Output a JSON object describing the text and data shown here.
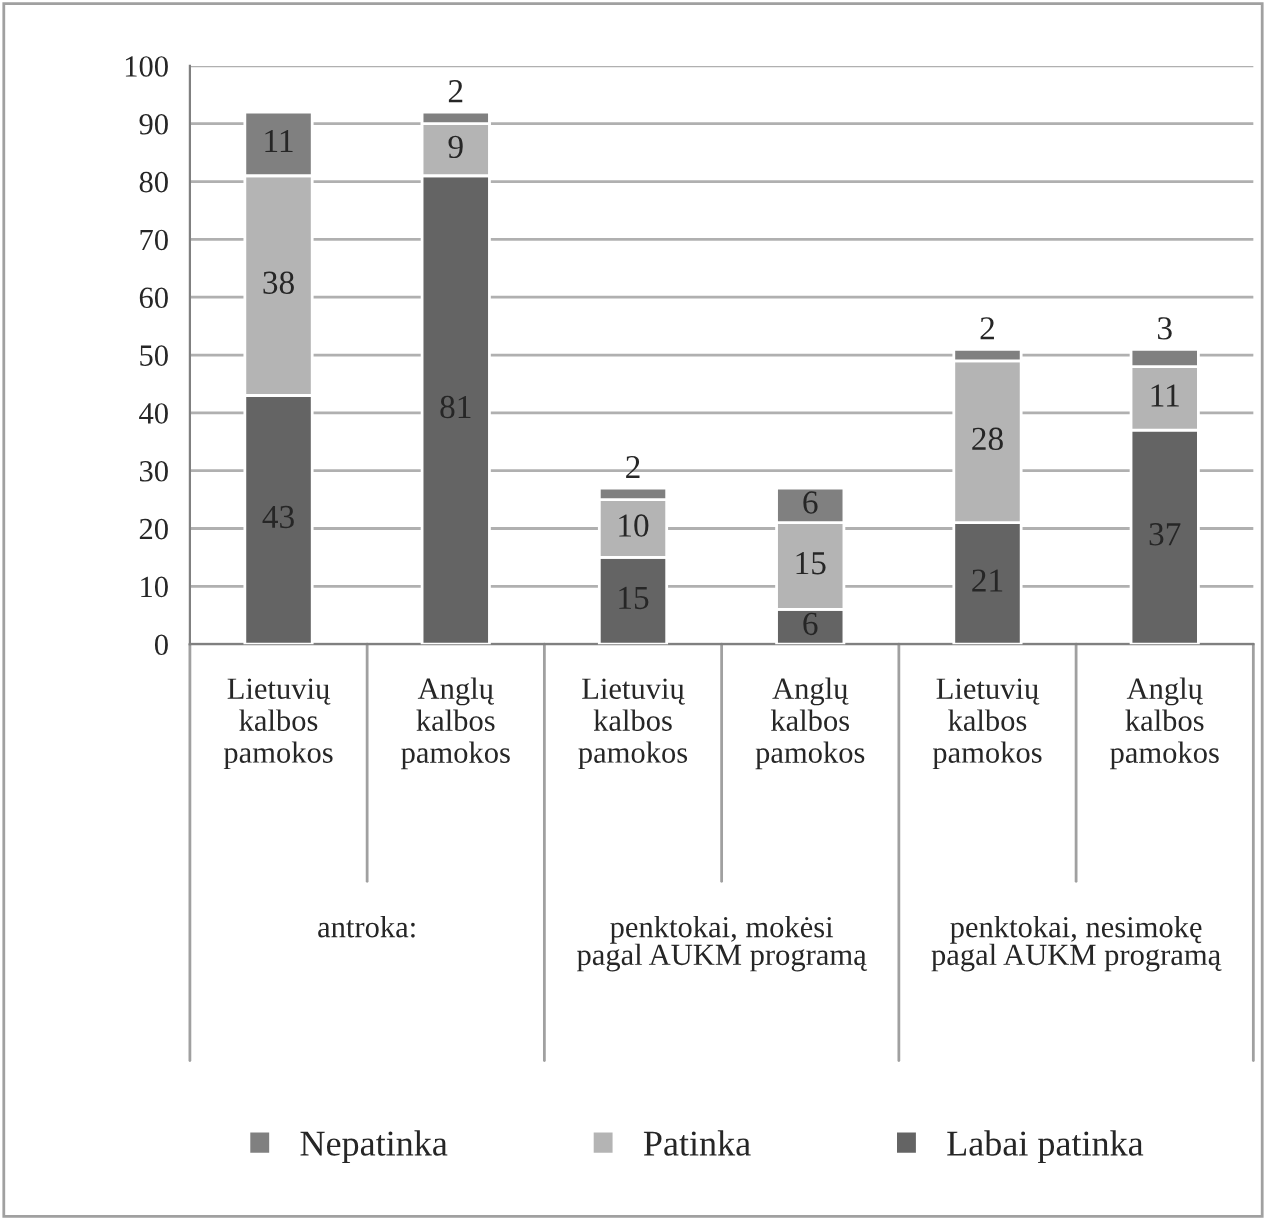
{
  "chart_data": {
    "type": "bar",
    "stacked": true,
    "categories": [
      "Lietuvių kalbos pamokos",
      "Anglų kalbos pamokos",
      "Lietuvių kalbos pamokos",
      "Anglų kalbos pamokos",
      "Lietuvių kalbos pamokos",
      "Anglų kalbos pamokos"
    ],
    "series": [
      {
        "name": "Labai patinka",
        "color": "#646464",
        "values": [
          43,
          81,
          15,
          6,
          21,
          37
        ]
      },
      {
        "name": "Patinka",
        "color": "#b4b4b4",
        "values": [
          38,
          9,
          10,
          15,
          28,
          11
        ]
      },
      {
        "name": "Nepatinka",
        "color": "#808080",
        "values": [
          11,
          2,
          2,
          6,
          2,
          3
        ]
      }
    ],
    "annotations": [
      "antroka:",
      "penktokai, mokėsi pagal AUKM programą",
      "penktokai, nesimokę pagal AUKM programą"
    ],
    "ylim": [
      0,
      100
    ],
    "yticks": [
      0,
      10,
      20,
      30,
      40,
      50,
      60,
      70,
      80,
      90,
      100
    ],
    "grid": "y",
    "legend": "bottom",
    "data_labels": true
  }
}
